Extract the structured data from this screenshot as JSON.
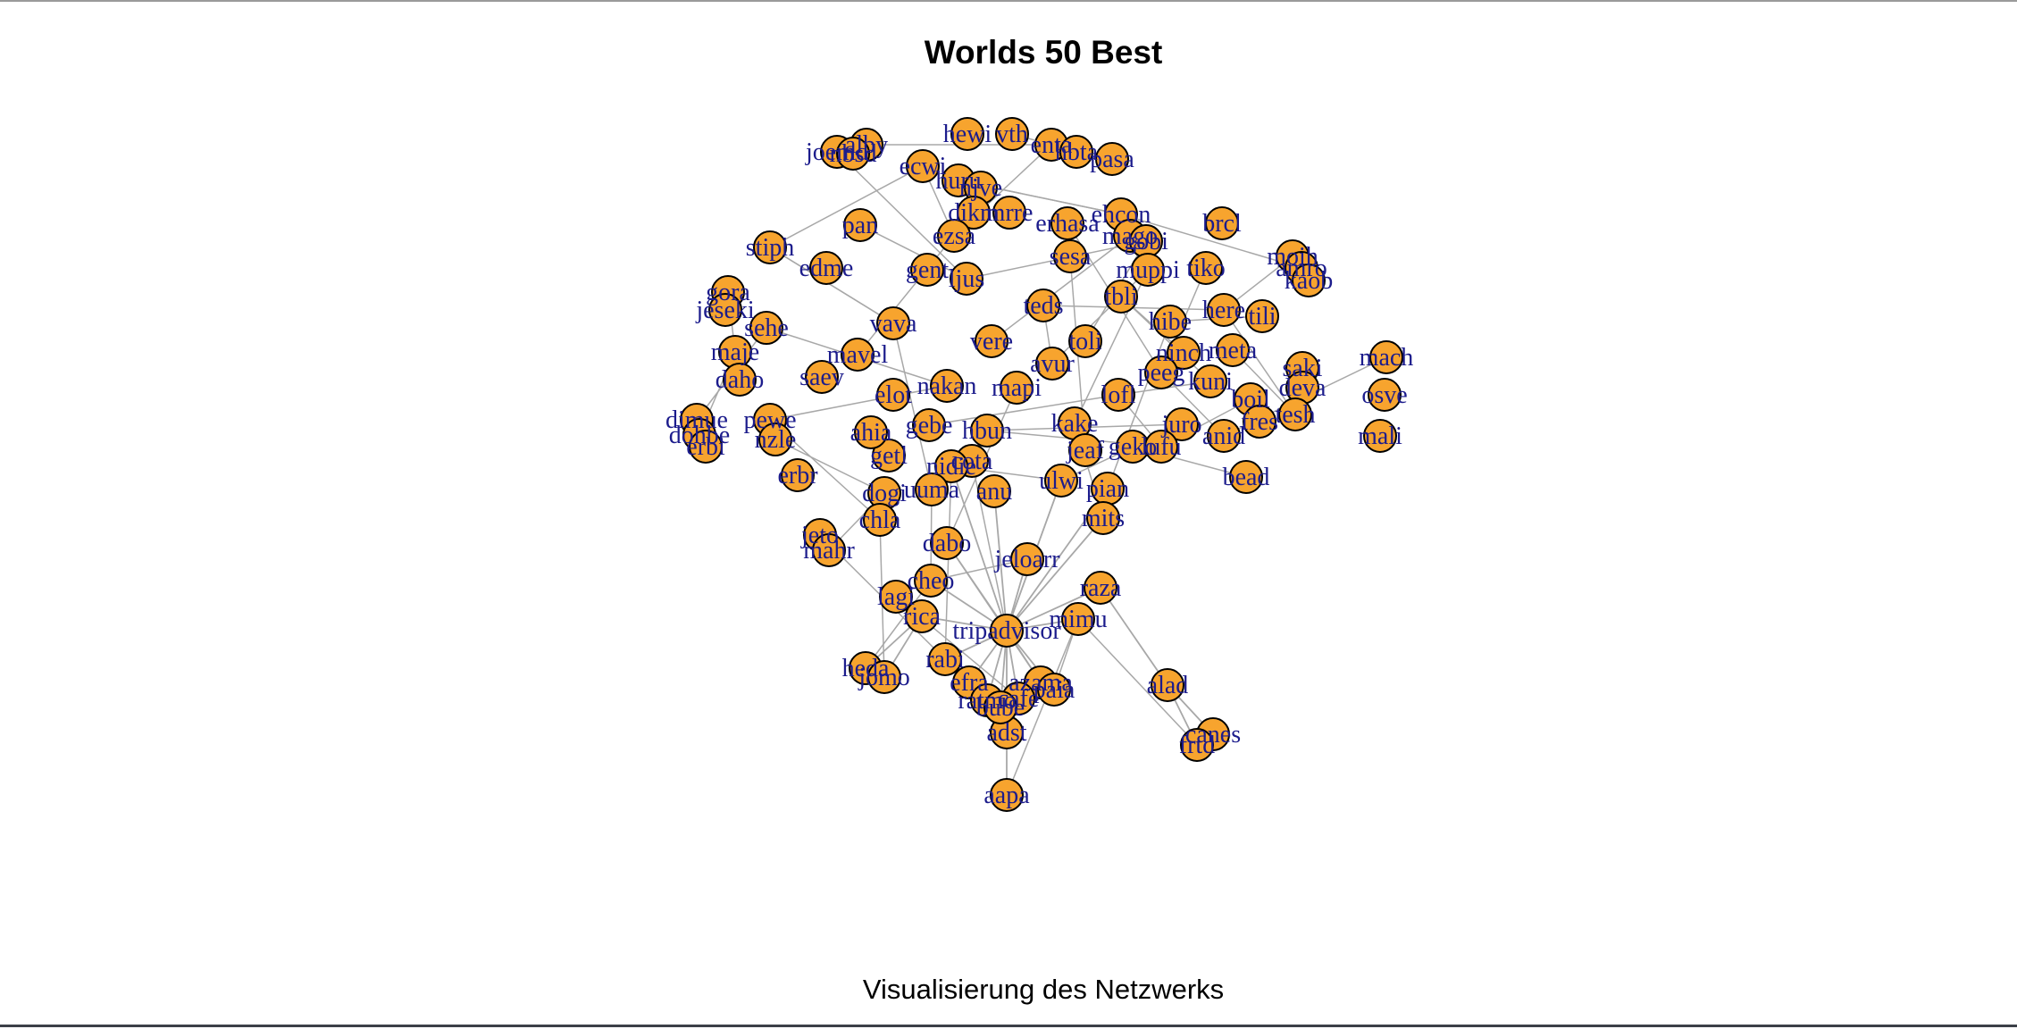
{
  "title": "Worlds 50 Best",
  "subtitle": "Visualisierung des Netzwerks",
  "colors": {
    "node_fill": "#f7a42e",
    "node_stroke": "#000000",
    "edge": "#a8a8a8",
    "label": "#1c1c8c"
  },
  "hub": "tripadvisor",
  "nodes": [
    "tripadvisor",
    "jeloarr",
    "adst",
    "aapa",
    "alad",
    "canes",
    "frtd",
    "raza",
    "mimu",
    "rabi",
    "lagi",
    "rica",
    "cheo",
    "heda",
    "jomo",
    "efra",
    "azama",
    "paia",
    "ratmo",
    "cafe",
    "bube",
    "joemd",
    "alby",
    "nbsd",
    "hewi",
    "vth",
    "enta",
    "hbta",
    "pasa",
    "ecwi",
    "huru",
    "njve",
    "dikm",
    "mrre",
    "ezsa",
    "erhasa",
    "ehcon",
    "mago",
    "gobi",
    "brcl",
    "moih",
    "amro",
    "kaob",
    "pan",
    "stiph",
    "edme",
    "gora",
    "jeseki",
    "sehe",
    "maje",
    "daho",
    "dimue",
    "dohbe",
    "erbi",
    "pewe",
    "nzle",
    "erbr",
    "jeto",
    "mahr",
    "dabo",
    "dogi",
    "chla",
    "getl",
    "ahia",
    "gebe",
    "cota",
    "nidie",
    "uuma",
    "anu",
    "ulwi",
    "pian",
    "mits",
    "kake",
    "here",
    "tili",
    "mach",
    "osve",
    "mali",
    "bead",
    "tiko",
    "muppi",
    "ninch",
    "hibe",
    "anid",
    "juro",
    "jeaf",
    "geko",
    "lufu",
    "lofl",
    "meta",
    "saki",
    "deva",
    "tesh",
    "hbun",
    "mapi",
    "avur",
    "elot",
    "nakan",
    "teds",
    "sesa",
    "tbli",
    "peeg",
    "boil",
    "ljus",
    "gent",
    "saev",
    "mavel",
    "vava",
    "vere",
    "toli",
    "kuni",
    "fres"
  ],
  "edges": [
    [
      "tripadvisor",
      "adst"
    ],
    [
      "adst",
      "aapa"
    ],
    [
      "tripadvisor",
      "jeloarr"
    ],
    [
      "tripadvisor",
      "raza"
    ],
    [
      "raza",
      "alad"
    ],
    [
      "alad",
      "canes"
    ],
    [
      "alad",
      "frtd"
    ],
    [
      "tripadvisor",
      "mimu"
    ],
    [
      "tripadvisor",
      "rabi"
    ],
    [
      "tripadvisor",
      "rica"
    ],
    [
      "tripadvisor",
      "cheo"
    ],
    [
      "lagi",
      "rica"
    ],
    [
      "rica",
      "heda"
    ],
    [
      "rica",
      "jomo"
    ],
    [
      "tripadvisor",
      "efra"
    ],
    [
      "tripadvisor",
      "azama"
    ],
    [
      "tripadvisor",
      "paia"
    ],
    [
      "tripadvisor",
      "ratmo"
    ],
    [
      "tripadvisor",
      "cafe"
    ],
    [
      "tripadvisor",
      "bube"
    ],
    [
      "tripadvisor",
      "dabo"
    ],
    [
      "tripadvisor",
      "ulwi"
    ],
    [
      "tripadvisor",
      "anu"
    ],
    [
      "tripadvisor",
      "mits"
    ],
    [
      "tripadvisor",
      "nidie"
    ],
    [
      "tripadvisor",
      "pian"
    ]
  ]
}
